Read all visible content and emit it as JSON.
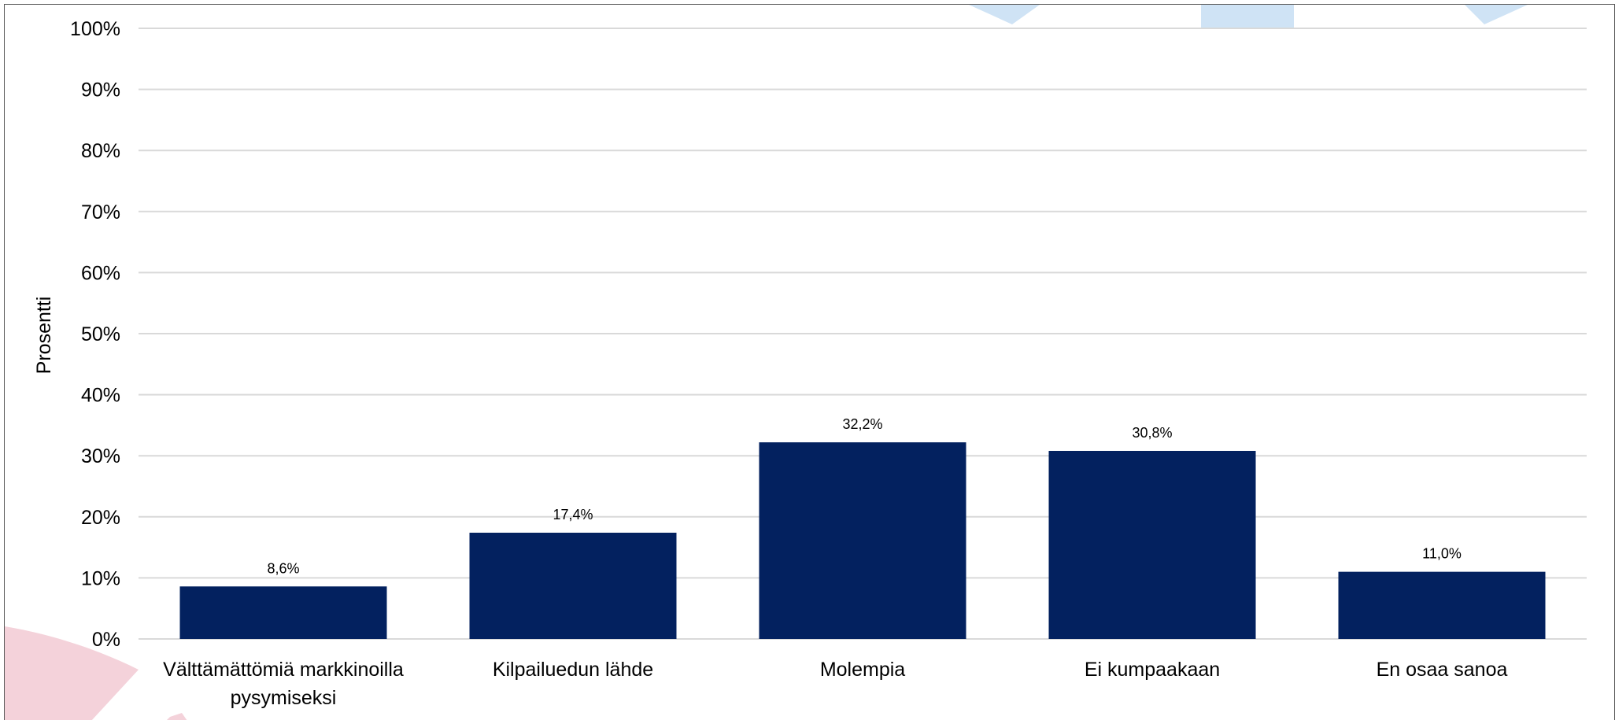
{
  "colors": {
    "bar": "#03215F",
    "grid": "#D9D9D9",
    "decor_blue": "#CFE3F5",
    "decor_pink": "#F4D2DA"
  },
  "chart_data": {
    "type": "bar",
    "title": "",
    "xlabel": "",
    "ylabel": "Prosentti",
    "ylim": [
      0,
      100
    ],
    "yticks": [
      0,
      10,
      20,
      30,
      40,
      50,
      60,
      70,
      80,
      90,
      100
    ],
    "ytick_labels": [
      "0%",
      "10%",
      "20%",
      "30%",
      "40%",
      "50%",
      "60%",
      "70%",
      "80%",
      "90%",
      "100%"
    ],
    "categories": [
      [
        "Välttämättömiä markkinoilla",
        "pysymiseksi"
      ],
      [
        "Kilpailuedun lähde"
      ],
      [
        "Molempia"
      ],
      [
        "Ei kumpaakaan"
      ],
      [
        "En osaa sanoa"
      ]
    ],
    "values": [
      8.6,
      17.4,
      32.2,
      30.8,
      11.0
    ],
    "data_labels": [
      "8,6%",
      "17,4%",
      "32,2%",
      "30,8%",
      "11,0%"
    ],
    "grid": true,
    "legend": "none"
  }
}
